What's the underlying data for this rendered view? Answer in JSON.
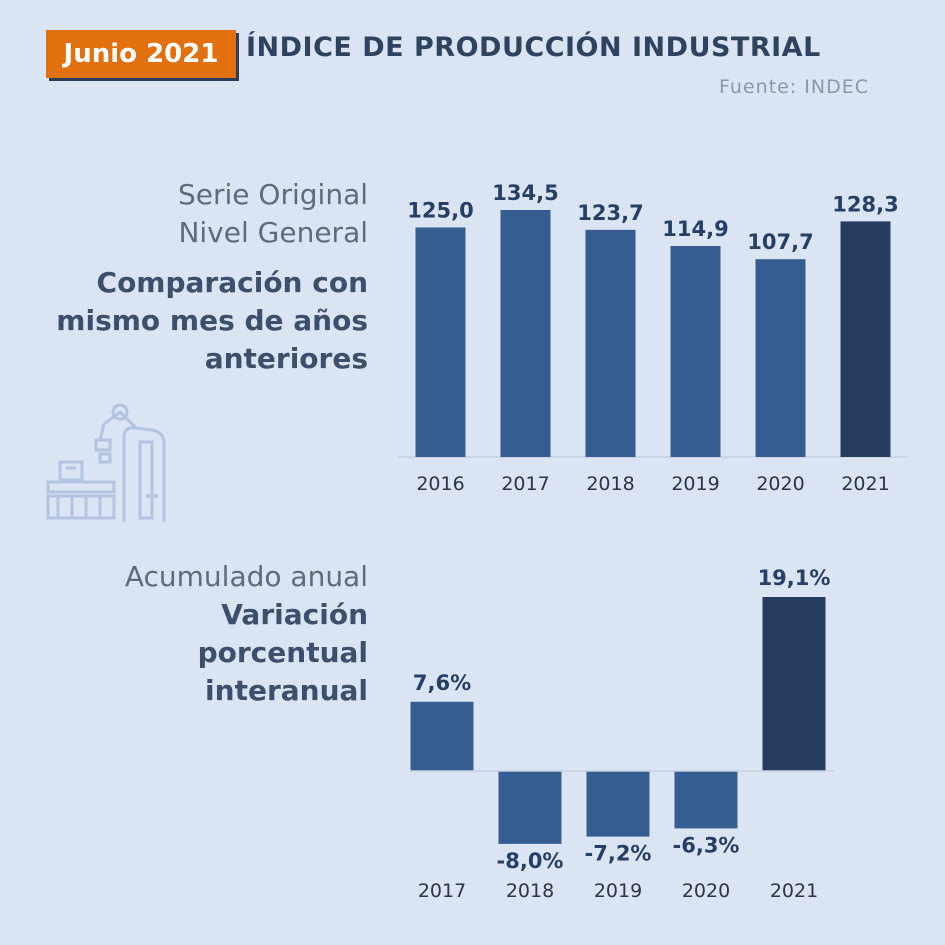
{
  "header": {
    "badge": "Junio 2021",
    "title": "ÍNDICE DE PRODUCCIÓN INDUSTRIAL",
    "source": "Fuente: INDEC"
  },
  "section1": {
    "line1": "Serie Original",
    "line2": "Nivel General",
    "bold1": "Comparación con",
    "bold2": "mismo mes de años",
    "bold3": "anteriores"
  },
  "section2": {
    "line1": "Acumulado anual",
    "bold1": "Variación",
    "bold2": "porcentual",
    "bold3": "interanual"
  },
  "colors": {
    "bar": "#365d92",
    "bar_highlight": "#253e5f",
    "label": "#263f66",
    "axis_text": "#2e3440",
    "badge": "#e2700f"
  },
  "icons": {
    "illustration": "industrial-robot-arm-icon"
  },
  "chart_data": [
    {
      "type": "bar",
      "categories": [
        "2016",
        "2017",
        "2018",
        "2019",
        "2020",
        "2021"
      ],
      "values": [
        125.0,
        134.5,
        123.7,
        114.9,
        107.7,
        128.3
      ],
      "labels": [
        "125,0",
        "134,5",
        "123,7",
        "114,9",
        "107,7",
        "128,3"
      ],
      "highlight_index": 5,
      "ylim": [
        0,
        140
      ]
    },
    {
      "type": "bar",
      "categories": [
        "2017",
        "2018",
        "2019",
        "2020",
        "2021"
      ],
      "values": [
        7.6,
        -8.0,
        -7.2,
        -6.3,
        19.1
      ],
      "labels": [
        "7,6%",
        "-8,0%",
        "-7,2%",
        "-6,3%",
        "19,1%"
      ],
      "highlight_index": 4,
      "ylim": [
        -10,
        20
      ]
    }
  ]
}
